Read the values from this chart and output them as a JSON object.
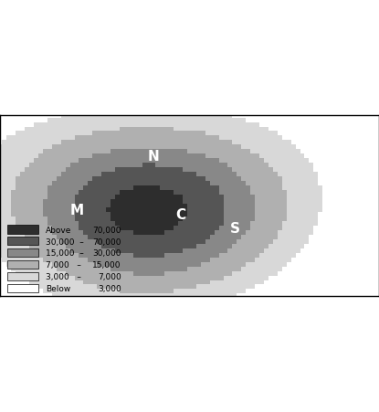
{
  "title": "",
  "legend_labels": [
    "Above 70,000",
    "30,000 – 70,000",
    "15,000 – 30,000",
    "7,000 – 15,000",
    "3,000 – 7,000",
    "Below 3,000"
  ],
  "legend_colors": [
    "#2d2d2d",
    "#555555",
    "#888888",
    "#b0b0b0",
    "#d8d8d8",
    "#ffffff"
  ],
  "legend_thresholds": [
    70000,
    30000,
    15000,
    7000,
    3000,
    0
  ],
  "map_extent": [
    -12,
    30,
    42,
    62
  ],
  "label_M": {
    "text": "M",
    "lon": -3.5,
    "lat": 51.5
  },
  "label_C": {
    "text": "C",
    "lon": 8.0,
    "lat": 51.0
  },
  "label_S": {
    "text": "S",
    "lon": 14.0,
    "lat": 49.5
  },
  "label_N": {
    "text": "N",
    "lon": 5.0,
    "lat": 57.5
  },
  "background_color": "#f0f0f0",
  "grid_resolution": 0.5,
  "figsize": [
    4.15,
    4.52
  ],
  "dpi": 100
}
